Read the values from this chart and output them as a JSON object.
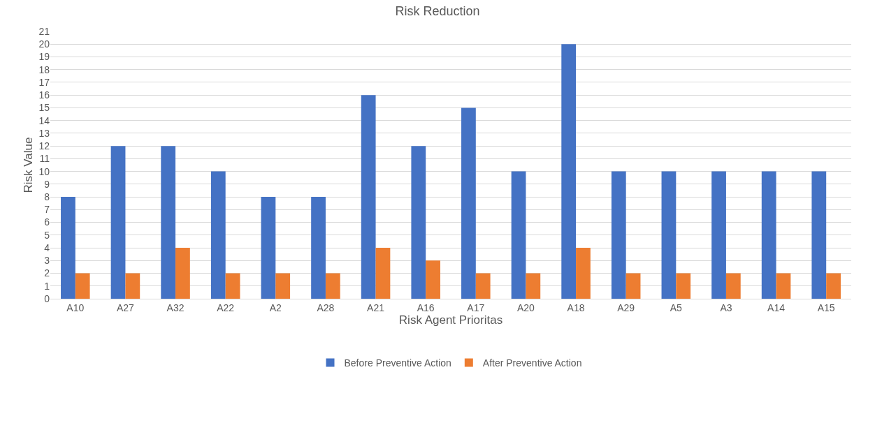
{
  "chart_data": {
    "type": "bar",
    "title": "Risk Reduction",
    "xlabel": "Risk Agent Prioritas",
    "ylabel": "Risk Value",
    "categories": [
      "A10",
      "A27",
      "A32",
      "A22",
      "A2",
      "A28",
      "A21",
      "A16",
      "A17",
      "A20",
      "A18",
      "A29",
      "A5",
      "A3",
      "A14",
      "A15"
    ],
    "series": [
      {
        "name": "Before Preventive Action",
        "color": "#4472c4",
        "values": [
          8,
          12,
          12,
          10,
          8,
          8,
          16,
          12,
          15,
          10,
          20,
          10,
          10,
          10,
          10,
          10
        ]
      },
      {
        "name": "After Preventive Action",
        "color": "#ed7d31",
        "values": [
          2,
          2,
          4,
          2,
          2,
          2,
          4,
          3,
          2,
          2,
          4,
          2,
          2,
          2,
          2,
          2
        ]
      }
    ],
    "ylim": [
      0,
      21
    ],
    "yticks": [
      0,
      1,
      2,
      3,
      4,
      5,
      6,
      7,
      8,
      9,
      10,
      11,
      12,
      13,
      14,
      15,
      16,
      17,
      18,
      19,
      20,
      21
    ],
    "grid": "y",
    "legend": "bottom"
  }
}
